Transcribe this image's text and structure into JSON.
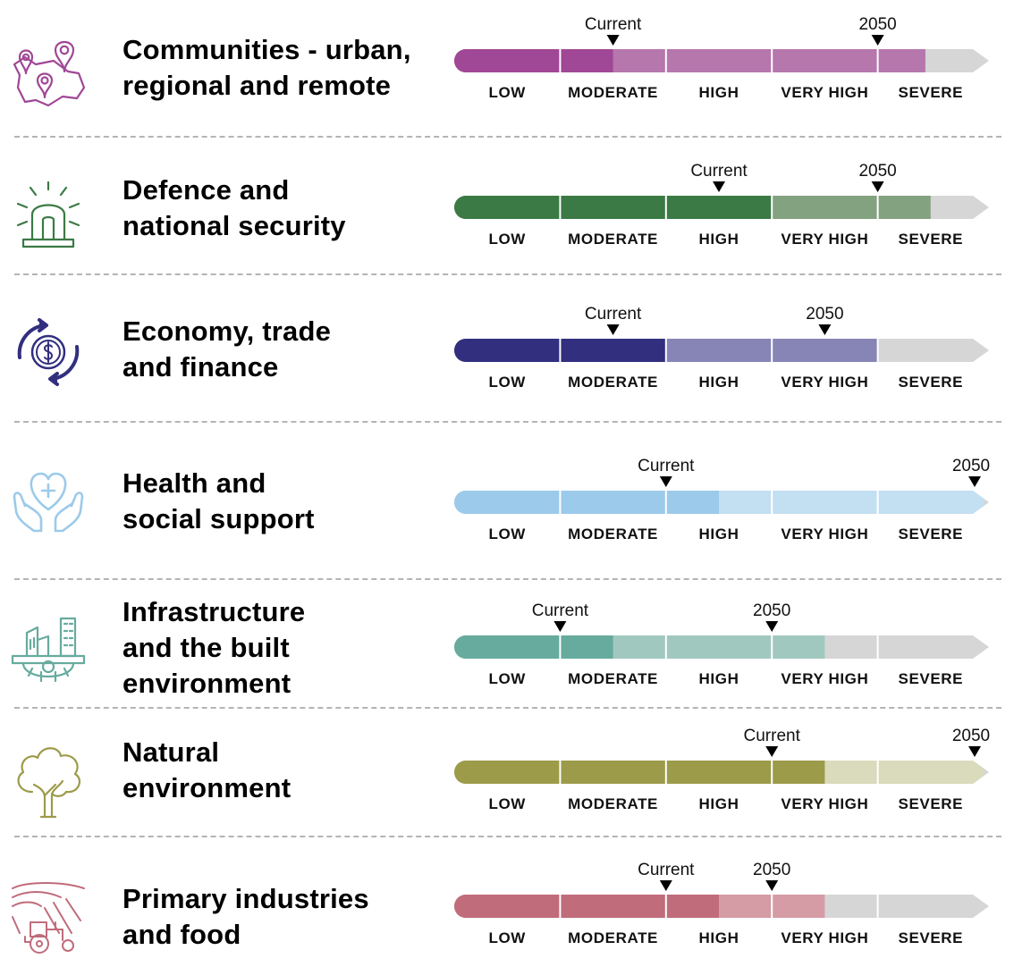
{
  "chart_data": [
    {
      "type": "bar",
      "title": "Communities - urban, regional and remote",
      "categories": [
        "LOW",
        "MODERATE",
        "HIGH",
        "VERY HIGH",
        "SEVERE"
      ],
      "current_level": 1.5,
      "future_level": 4.0,
      "markers": [
        {
          "label": "Current",
          "level": 1.5
        },
        {
          "label": "2050",
          "level": 4.0
        }
      ],
      "bar_end_level": 4.45,
      "colors": {
        "current": "#a04795",
        "future": "#b677ad"
      },
      "icon": "map-pins-icon"
    },
    {
      "type": "bar",
      "title": "Defence and national security",
      "categories": [
        "LOW",
        "MODERATE",
        "HIGH",
        "VERY HIGH",
        "SEVERE"
      ],
      "current_level": 3.0,
      "future_level": 4.0,
      "markers": [
        {
          "label": "Current",
          "level": 2.5
        },
        {
          "label": "2050",
          "level": 4.0
        }
      ],
      "bar_end_level": 4.5,
      "colors": {
        "current": "#3b7a45",
        "future": "#83a27f"
      },
      "icon": "siren-light-icon"
    },
    {
      "type": "bar",
      "title": "Economy, trade and finance",
      "categories": [
        "LOW",
        "MODERATE",
        "HIGH",
        "VERY HIGH",
        "SEVERE"
      ],
      "current_level": 2.0,
      "future_level": 4.0,
      "markers": [
        {
          "label": "Current",
          "level": 1.5
        },
        {
          "label": "2050",
          "level": 3.5
        }
      ],
      "bar_end_level": 4.0,
      "colors": {
        "current": "#322f7f",
        "future": "#8784b6"
      },
      "icon": "money-cycle-icon"
    },
    {
      "type": "bar",
      "title": "Health and social support",
      "categories": [
        "LOW",
        "MODERATE",
        "HIGH",
        "VERY HIGH",
        "SEVERE"
      ],
      "current_level": 2.5,
      "future_level": 5.0,
      "markers": [
        {
          "label": "Current",
          "level": 2.0
        },
        {
          "label": "2050",
          "level": 5.0
        }
      ],
      "bar_end_level": 5.0,
      "colors": {
        "current": "#9ccaea",
        "future": "#c3dff2"
      },
      "icon": "heart-hands-icon"
    },
    {
      "type": "bar",
      "title": "Infrastructure and the built environment",
      "categories": [
        "LOW",
        "MODERATE",
        "HIGH",
        "VERY HIGH",
        "SEVERE"
      ],
      "current_level": 1.5,
      "future_level": 3.5,
      "markers": [
        {
          "label": "Current",
          "level": 1.0
        },
        {
          "label": "2050",
          "level": 3.0
        }
      ],
      "bar_end_level": 3.5,
      "colors": {
        "current": "#66ab9e",
        "future": "#a1c8bf"
      },
      "icon": "buildings-gear-icon"
    },
    {
      "type": "bar",
      "title": "Natural environment",
      "categories": [
        "LOW",
        "MODERATE",
        "HIGH",
        "VERY HIGH",
        "SEVERE"
      ],
      "current_level": 3.5,
      "future_level": 5.0,
      "markers": [
        {
          "label": "Current",
          "level": 3.0
        },
        {
          "label": "2050",
          "level": 5.0
        }
      ],
      "bar_end_level": 5.0,
      "colors": {
        "current": "#9c9b4a",
        "future": "#dadabc"
      },
      "icon": "tree-icon"
    },
    {
      "type": "bar",
      "title": "Primary industries and food",
      "categories": [
        "LOW",
        "MODERATE",
        "HIGH",
        "VERY HIGH",
        "SEVERE"
      ],
      "current_level": 2.5,
      "future_level": 3.5,
      "markers": [
        {
          "label": "Current",
          "level": 2.0
        },
        {
          "label": "2050",
          "level": 3.0
        }
      ],
      "bar_end_level": 3.5,
      "colors": {
        "current": "#c06c7b",
        "future": "#d59ca5"
      },
      "icon": "tractor-field-icon"
    }
  ],
  "rows": [
    {
      "title_lines": [
        "Communities - urban,",
        "regional and remote"
      ]
    },
    {
      "title_lines": [
        "Defence and",
        "national security"
      ]
    },
    {
      "title_lines": [
        "Economy, trade",
        "and finance"
      ]
    },
    {
      "title_lines": [
        "Health and",
        "social support"
      ]
    },
    {
      "title_lines": [
        "Infrastructure",
        "and the built",
        "environment"
      ]
    },
    {
      "title_lines": [
        "Natural",
        "environment"
      ]
    },
    {
      "title_lines": [
        "Primary industries",
        "and food"
      ]
    }
  ],
  "colors": {
    "track": "#d6d6d6",
    "marker": "#000000",
    "divider": "#b4b4b4"
  }
}
